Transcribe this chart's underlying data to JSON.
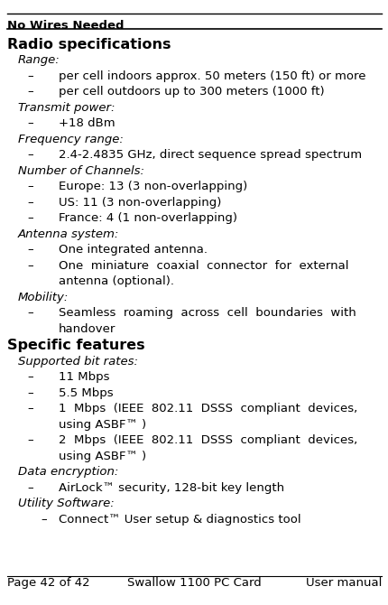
{
  "header_text": "No Wires Needed",
  "footer_left": "Page 42 of 42",
  "footer_center": "Swallow 1100 PC Card",
  "footer_right": "User manual",
  "title": "Radio specifications",
  "background_color": "#ffffff",
  "text_color": "#000000",
  "font_size": 9.5,
  "title_font_size": 11.5,
  "header_font_size": 9.5,
  "lines": [
    {
      "type": "italic",
      "indent": 1,
      "text": "Range:"
    },
    {
      "type": "bullet",
      "indent": 2,
      "text": "per cell indoors approx. 50 meters (150 ft) or more"
    },
    {
      "type": "bullet",
      "indent": 2,
      "text": "per cell outdoors up to 300 meters (1000 ft)"
    },
    {
      "type": "italic",
      "indent": 1,
      "text": "Transmit power:"
    },
    {
      "type": "bullet",
      "indent": 2,
      "text": "+18 dBm"
    },
    {
      "type": "italic",
      "indent": 1,
      "text": "Frequency range:"
    },
    {
      "type": "bullet",
      "indent": 2,
      "text": "2.4-2.4835 GHz, direct sequence spread spectrum"
    },
    {
      "type": "italic",
      "indent": 1,
      "text": "Number of Channels:"
    },
    {
      "type": "bullet",
      "indent": 2,
      "text": "Europe: 13 (3 non-overlapping)"
    },
    {
      "type": "bullet",
      "indent": 2,
      "text": "US: 11 (3 non-overlapping)"
    },
    {
      "type": "bullet",
      "indent": 2,
      "text": "France: 4 (1 non-overlapping)"
    },
    {
      "type": "italic",
      "indent": 1,
      "text": "Antenna system:"
    },
    {
      "type": "bullet",
      "indent": 2,
      "text": "One integrated antenna."
    },
    {
      "type": "bullet_wrap",
      "indent": 2,
      "line1": "One  miniature  coaxial  connector  for  external",
      "line2": "antenna (optional)."
    },
    {
      "type": "italic",
      "indent": 1,
      "text": "Mobility:"
    },
    {
      "type": "bullet_wrap",
      "indent": 2,
      "line1": "Seamless  roaming  across  cell  boundaries  with",
      "line2": "handover"
    },
    {
      "type": "bold",
      "indent": 0,
      "text": "Specific features"
    },
    {
      "type": "italic",
      "indent": 1,
      "text": "Supported bit rates:"
    },
    {
      "type": "bullet",
      "indent": 2,
      "text": "11 Mbps"
    },
    {
      "type": "bullet",
      "indent": 2,
      "text": "5.5 Mbps"
    },
    {
      "type": "bullet_wrap",
      "indent": 2,
      "line1": "1  Mbps  (IEEE  802.11  DSSS  compliant  devices,",
      "line2": "using ASBF™ )"
    },
    {
      "type": "bullet_wrap",
      "indent": 2,
      "line1": "2  Mbps  (IEEE  802.11  DSSS  compliant  devices,",
      "line2": "using ASBF™ )"
    },
    {
      "type": "italic",
      "indent": 1,
      "text": "Data encryption:"
    },
    {
      "type": "bullet",
      "indent": 2,
      "text": "AirLock™ security, 128-bit key length"
    },
    {
      "type": "italic",
      "indent": 1,
      "text": "Utility Software:"
    },
    {
      "type": "bullet",
      "indent": 3,
      "text": "Connect™ User setup & diagnostics tool"
    }
  ]
}
